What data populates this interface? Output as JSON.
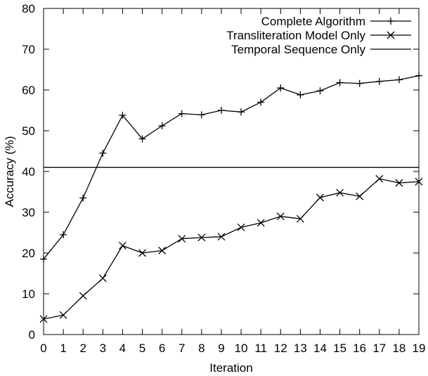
{
  "chart_data": {
    "type": "line",
    "xlabel": "Iteration",
    "ylabel": "Accuracy (%)",
    "xlim": [
      0,
      19
    ],
    "ylim": [
      0,
      80
    ],
    "x": [
      0,
      1,
      2,
      3,
      4,
      5,
      6,
      7,
      8,
      9,
      10,
      11,
      12,
      13,
      14,
      15,
      16,
      17,
      18,
      19
    ],
    "x_ticks": [
      "0",
      "1",
      "2",
      "3",
      "4",
      "5",
      "6",
      "7",
      "8",
      "9",
      "10",
      "11",
      "12",
      "13",
      "14",
      "15",
      "16",
      "17",
      "18",
      "19"
    ],
    "y_ticks": [
      "0",
      "10",
      "20",
      "30",
      "40",
      "50",
      "60",
      "70",
      "80"
    ],
    "grid": false,
    "legend_position": "top-right",
    "series": [
      {
        "name": "Complete Algorithm",
        "marker": "plus",
        "values": [
          18.5,
          24.5,
          33.5,
          44.5,
          53.8,
          48.0,
          51.2,
          54.2,
          53.9,
          55.0,
          54.6,
          57.0,
          60.5,
          58.8,
          59.8,
          61.8,
          61.6,
          62.1,
          62.5,
          63.5
        ]
      },
      {
        "name": "Transliteration Model Only",
        "marker": "x",
        "values": [
          3.8,
          4.8,
          9.5,
          13.8,
          21.8,
          20.0,
          20.6,
          23.5,
          23.8,
          24.0,
          26.3,
          27.4,
          29.0,
          28.4,
          33.6,
          34.8,
          33.9,
          38.2,
          37.2,
          37.5
        ]
      },
      {
        "name": "Temporal Sequence Only",
        "marker": "none",
        "constant": 41.0
      }
    ]
  }
}
